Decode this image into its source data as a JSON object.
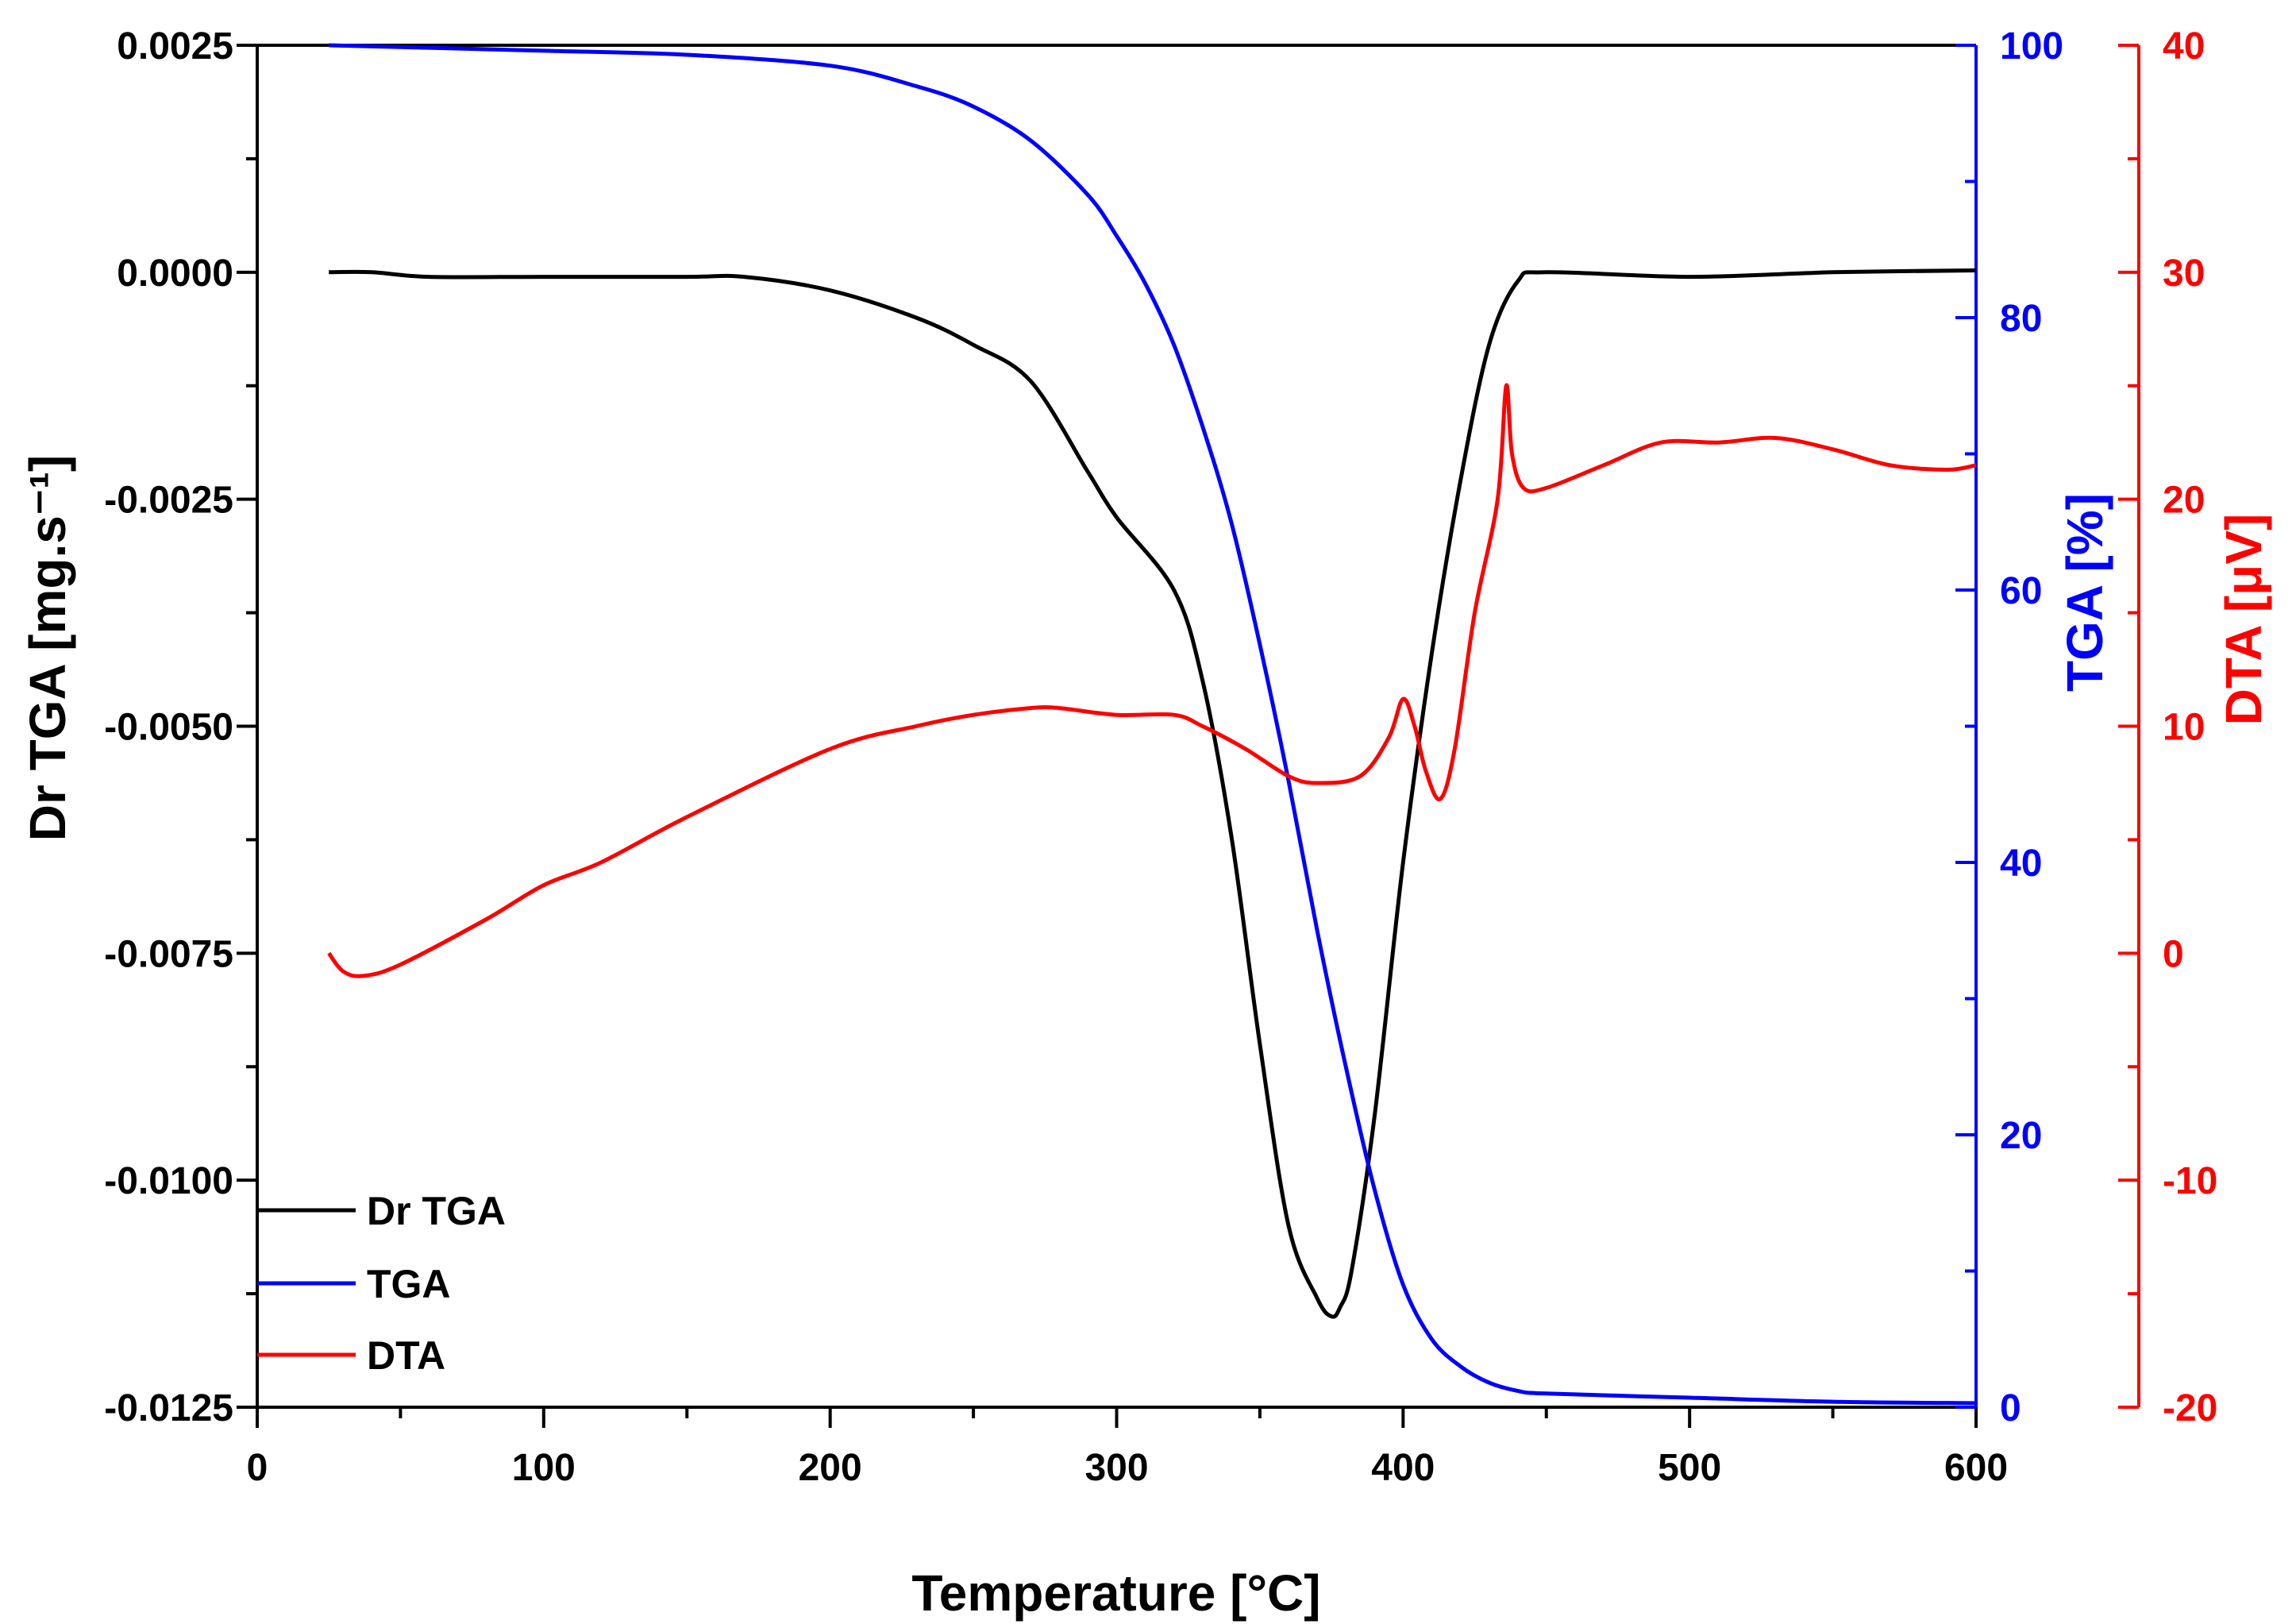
{
  "chart_data": {
    "type": "line",
    "x_axis": {
      "label": "Temperature [°C]",
      "range": [
        0,
        600
      ],
      "ticks": [
        "0",
        "100",
        "200",
        "300",
        "400",
        "500",
        "600"
      ]
    },
    "axes": {
      "left": {
        "label": "Dr TGA",
        "unit": "[mg.s⁻¹]",
        "range": [
          -0.0125,
          0.0025
        ],
        "color": "#000000",
        "ticks": [
          "0.0025",
          "0.0000",
          "-0.0025",
          "-0.0050",
          "-0.0075",
          "-0.0100",
          "-0.0125"
        ]
      },
      "right1": {
        "label": "TGA",
        "unit": "[%]",
        "range": [
          0,
          100
        ],
        "color": "#0000ff",
        "ticks": [
          "0",
          "20",
          "40",
          "60",
          "80",
          "100"
        ]
      },
      "right2": {
        "label": "DTA",
        "unit": "[μV]",
        "range": [
          -20,
          40
        ],
        "color": "#ff0000",
        "ticks": [
          "-20",
          "-10",
          "0",
          "10",
          "20",
          "30",
          "40"
        ]
      }
    },
    "legend_position": "bottom-left",
    "series": [
      {
        "name": "Dr TGA",
        "axis": "left",
        "color": "#000000",
        "x": [
          25,
          40,
          60,
          100,
          150,
          170,
          200,
          230,
          250,
          270,
          290,
          300,
          320,
          330,
          340,
          350,
          360,
          370,
          375,
          378,
          382,
          390,
          400,
          410,
          420,
          430,
          440,
          450,
          500,
          550,
          600
        ],
        "y": [
          0.0,
          0.0,
          -5e-05,
          -5e-05,
          -5e-05,
          -5e-05,
          -0.0002,
          -0.0005,
          -0.0008,
          -0.0012,
          -0.0022,
          -0.0027,
          -0.0035,
          -0.0045,
          -0.0062,
          -0.0085,
          -0.0105,
          -0.0113,
          -0.0115,
          -0.0114,
          -0.011,
          -0.0093,
          -0.0065,
          -0.0042,
          -0.0023,
          -0.0008,
          -0.0001,
          0.0,
          -5e-05,
          0.0,
          2e-05
        ]
      },
      {
        "name": "TGA",
        "axis": "right1",
        "color": "#0000ff",
        "x": [
          25,
          100,
          150,
          200,
          230,
          250,
          270,
          290,
          300,
          310,
          320,
          330,
          340,
          350,
          360,
          370,
          380,
          390,
          400,
          410,
          420,
          430,
          440,
          450,
          500,
          550,
          600
        ],
        "y": [
          100,
          99.6,
          99.3,
          98.5,
          97,
          95.5,
          93,
          89,
          86,
          82.5,
          78,
          72,
          65,
          56,
          46,
          35,
          25,
          16,
          9,
          5,
          3,
          1.8,
          1.2,
          1.0,
          0.7,
          0.4,
          0.3
        ]
      },
      {
        "name": "DTA",
        "axis": "right2",
        "color": "#ff0000",
        "x": [
          25,
          30,
          37,
          50,
          80,
          100,
          120,
          150,
          200,
          230,
          250,
          270,
          280,
          300,
          320,
          330,
          345,
          360,
          370,
          385,
          395,
          400,
          404,
          408,
          413,
          418,
          425,
          433,
          436,
          438,
          442,
          450,
          470,
          490,
          510,
          530,
          550,
          570,
          590,
          600
        ],
        "y": [
          0,
          -0.8,
          -1,
          -0.5,
          1.5,
          3,
          4,
          6,
          9,
          10,
          10.5,
          10.8,
          10.8,
          10.5,
          10.5,
          10,
          9,
          7.8,
          7.5,
          7.8,
          9.5,
          11.2,
          10,
          8,
          6.8,
          9,
          15,
          20,
          25,
          22,
          20.5,
          20.5,
          21.5,
          22.5,
          22.5,
          22.7,
          22.2,
          21.5,
          21.3,
          21.5
        ]
      }
    ]
  }
}
